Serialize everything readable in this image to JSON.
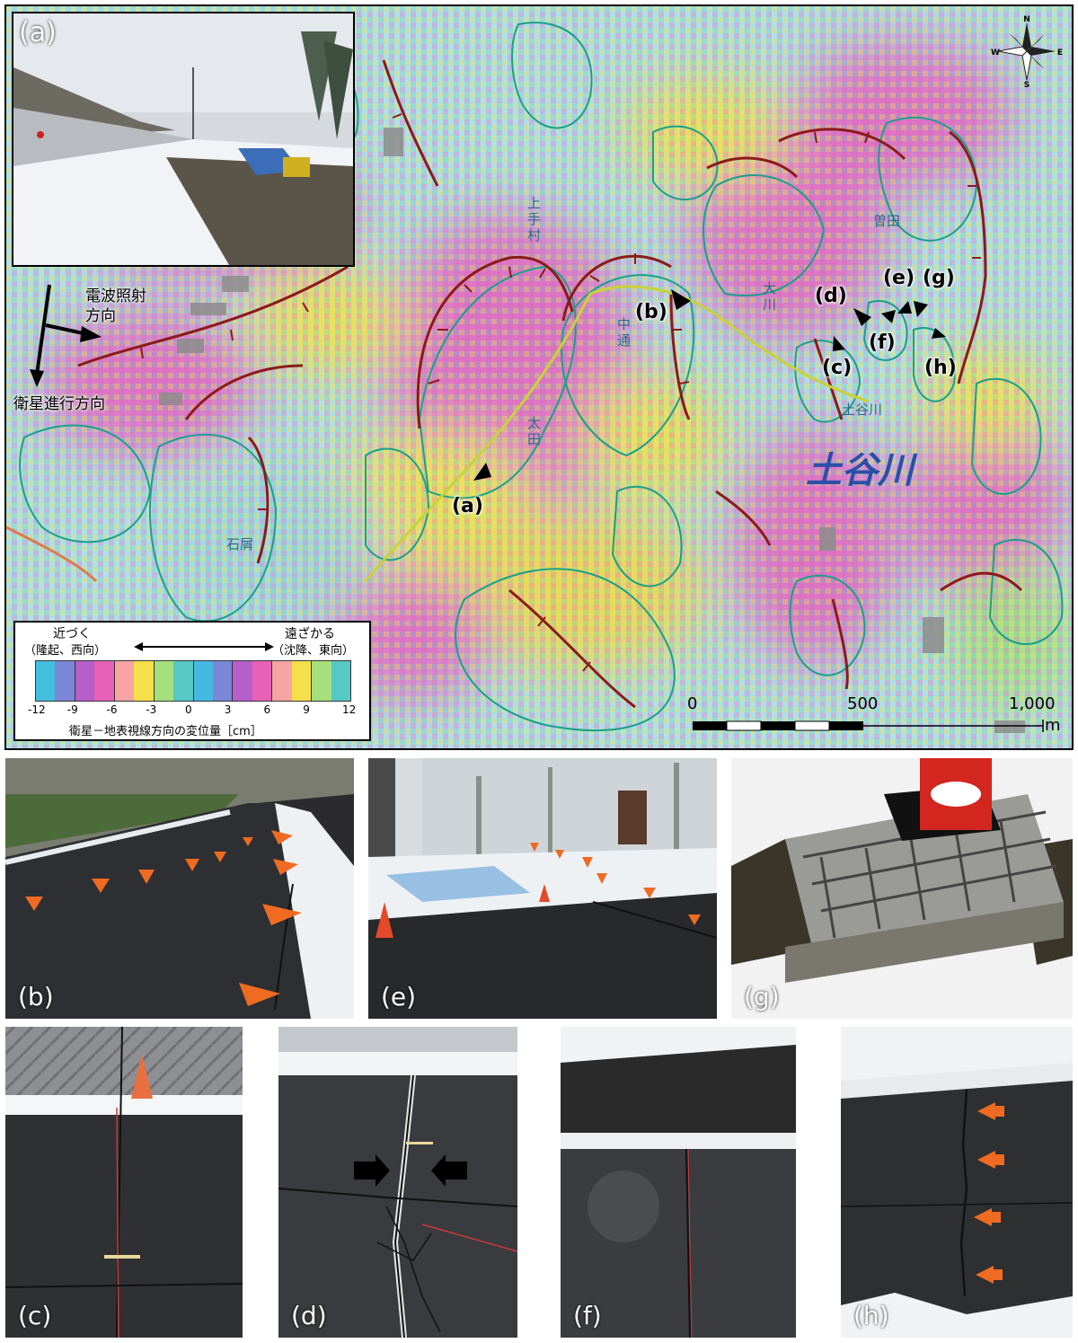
{
  "map": {
    "panel_label": "(a)",
    "marker_labels": {
      "a": "(a)",
      "b": "(b)",
      "c": "(c)",
      "d": "(d)",
      "e": "(e)",
      "f": "(f)",
      "g": "(g)",
      "h": "(h)"
    },
    "radar_direction": "電波照射\n方向",
    "satellite_direction": "衛星進行方向",
    "river_label": "土谷川",
    "place_labels": [
      "上手村",
      "中通",
      "太田",
      "石屑",
      "大川",
      "土谷川",
      "曽田"
    ],
    "compass": {
      "n": "N",
      "s": "S",
      "e": "E",
      "w": "W"
    },
    "legend": {
      "approach": "近づく",
      "approach_sub": "（隆起、西向）",
      "recede": "遠ざかる",
      "recede_sub": "（沈降、東向）",
      "ticks": [
        "-12",
        "-9",
        "-6",
        "-3",
        "0",
        "3",
        "6",
        "9",
        "12"
      ],
      "caption": "衛星－地表視線方向の変位量［cm］",
      "colors": [
        "#44bfe0",
        "#7a86d6",
        "#b65ec9",
        "#e860b8",
        "#f6a4a4",
        "#f4e04a",
        "#a6e07c",
        "#56c9c4",
        "#46b9e2",
        "#7a86d6",
        "#b65ec9",
        "#e860b8",
        "#f6a4a4",
        "#f4e04a",
        "#a6e07c",
        "#56c9c4"
      ]
    },
    "scale": {
      "labels": [
        "0",
        "500",
        "1,000"
      ],
      "unit": "m"
    }
  },
  "photos": [
    {
      "key": "b",
      "label": "(b)"
    },
    {
      "key": "e",
      "label": "(e)"
    },
    {
      "key": "g",
      "label": "(g)"
    },
    {
      "key": "c",
      "label": "(c)"
    },
    {
      "key": "d",
      "label": "(d)"
    },
    {
      "key": "f",
      "label": "(f)"
    },
    {
      "key": "h",
      "label": "(h)"
    }
  ]
}
